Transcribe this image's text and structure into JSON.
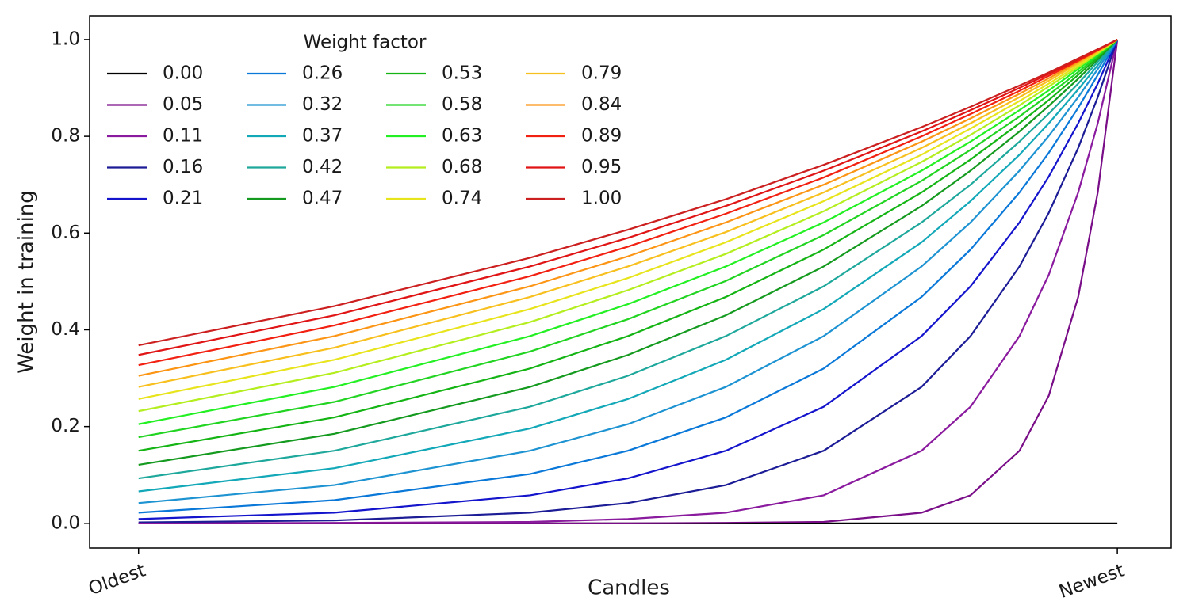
{
  "chart_data": {
    "type": "line",
    "xlabel": "Candles",
    "ylabel": "Weight in training",
    "legend_title": "Weight factor",
    "legend_position": "upper left",
    "legend_columns": 4,
    "grid": false,
    "x": [
      0,
      0.2,
      0.4,
      0.5,
      0.6,
      0.7,
      0.8,
      0.85,
      0.9,
      0.93,
      0.96,
      0.98,
      1.0
    ],
    "xlim": [
      -0.05,
      1.055
    ],
    "xticks": [
      {
        "value": 0,
        "label": "Oldest"
      },
      {
        "value": 1,
        "label": "Newest"
      }
    ],
    "ylim": [
      -0.051,
      1.049
    ],
    "yticks": [
      {
        "value": 0,
        "label": "0.0"
      },
      0.2,
      0.4,
      0.6,
      0.8,
      {
        "value": 1,
        "label": "1.0"
      }
    ],
    "series": [
      {
        "name": "0.00",
        "color": "#000000",
        "values": [
          0,
          0,
          0,
          0,
          0,
          0,
          0,
          0,
          0,
          0,
          0,
          0,
          0
        ]
      },
      {
        "name": "0.05",
        "color": "#7a0e88",
        "values": [
          0,
          0,
          0,
          0,
          0.001,
          0.003,
          0.022,
          0.058,
          0.15,
          0.264,
          0.468,
          0.684,
          1
        ]
      },
      {
        "name": "0.11",
        "color": "#8a1a9e",
        "values": [
          0,
          0.001,
          0.003,
          0.009,
          0.022,
          0.058,
          0.15,
          0.241,
          0.387,
          0.514,
          0.684,
          0.827,
          1
        ]
      },
      {
        "name": "0.16",
        "color": "#1c1c96",
        "values": [
          0.002,
          0.006,
          0.022,
          0.042,
          0.079,
          0.15,
          0.282,
          0.387,
          0.531,
          0.642,
          0.776,
          0.881,
          1
        ]
      },
      {
        "name": "0.21",
        "color": "#1414cc",
        "values": [
          0.009,
          0.022,
          0.058,
          0.093,
          0.15,
          0.241,
          0.387,
          0.49,
          0.622,
          0.717,
          0.827,
          0.909,
          1
        ]
      },
      {
        "name": "0.26",
        "color": "#0a78d8",
        "values": [
          0.022,
          0.048,
          0.102,
          0.15,
          0.219,
          0.32,
          0.468,
          0.566,
          0.684,
          0.766,
          0.859,
          0.927,
          1
        ]
      },
      {
        "name": "0.32",
        "color": "#1e93d2",
        "values": [
          0.042,
          0.079,
          0.15,
          0.205,
          0.282,
          0.387,
          0.531,
          0.622,
          0.729,
          0.801,
          0.881,
          0.939,
          1
        ]
      },
      {
        "name": "0.37",
        "color": "#12a8b8",
        "values": [
          0.066,
          0.114,
          0.196,
          0.257,
          0.338,
          0.443,
          0.581,
          0.666,
          0.762,
          0.827,
          0.897,
          0.947,
          1
        ]
      },
      {
        "name": "0.42",
        "color": "#1ea89c",
        "values": [
          0.093,
          0.15,
          0.241,
          0.305,
          0.387,
          0.49,
          0.622,
          0.7,
          0.789,
          0.847,
          0.909,
          0.954,
          1
        ]
      },
      {
        "name": "0.47",
        "color": "#149a1e",
        "values": [
          0.121,
          0.185,
          0.282,
          0.348,
          0.43,
          0.531,
          0.656,
          0.729,
          0.81,
          0.863,
          0.919,
          0.959,
          1
        ]
      },
      {
        "name": "0.53",
        "color": "#14b414",
        "values": [
          0.15,
          0.219,
          0.32,
          0.387,
          0.468,
          0.566,
          0.684,
          0.752,
          0.827,
          0.875,
          0.927,
          0.963,
          1
        ]
      },
      {
        "name": "0.58",
        "color": "#22d422",
        "values": [
          0.178,
          0.251,
          0.355,
          0.422,
          0.501,
          0.596,
          0.708,
          0.772,
          0.841,
          0.886,
          0.933,
          0.966,
          1
        ]
      },
      {
        "name": "0.63",
        "color": "#22f022",
        "values": [
          0.205,
          0.282,
          0.387,
          0.453,
          0.531,
          0.622,
          0.729,
          0.789,
          0.854,
          0.895,
          0.939,
          0.969,
          1
        ]
      },
      {
        "name": "0.68",
        "color": "#b4ee1e",
        "values": [
          0.232,
          0.311,
          0.416,
          0.482,
          0.557,
          0.645,
          0.747,
          0.803,
          0.864,
          0.903,
          0.943,
          0.971,
          1
        ]
      },
      {
        "name": "0.74",
        "color": "#e8e41c",
        "values": [
          0.257,
          0.338,
          0.443,
          0.507,
          0.581,
          0.666,
          0.762,
          0.816,
          0.873,
          0.909,
          0.947,
          0.973,
          1
        ]
      },
      {
        "name": "0.79",
        "color": "#f8c01e",
        "values": [
          0.282,
          0.363,
          0.468,
          0.531,
          0.602,
          0.684,
          0.776,
          0.827,
          0.881,
          0.915,
          0.951,
          0.975,
          1
        ]
      },
      {
        "name": "0.84",
        "color": "#fc9414",
        "values": [
          0.305,
          0.387,
          0.49,
          0.552,
          0.622,
          0.7,
          0.789,
          0.837,
          0.888,
          0.92,
          0.954,
          0.977,
          1
        ]
      },
      {
        "name": "0.89",
        "color": "#f22010",
        "values": [
          0.327,
          0.409,
          0.511,
          0.572,
          0.64,
          0.715,
          0.8,
          0.846,
          0.894,
          0.925,
          0.956,
          0.978,
          1
        ]
      },
      {
        "name": "0.95",
        "color": "#e01414",
        "values": [
          0.348,
          0.43,
          0.531,
          0.59,
          0.656,
          0.729,
          0.81,
          0.854,
          0.9,
          0.929,
          0.959,
          0.979,
          1
        ]
      },
      {
        "name": "1.00",
        "color": "#cc2020",
        "values": [
          0.368,
          0.449,
          0.549,
          0.607,
          0.67,
          0.741,
          0.819,
          0.861,
          0.905,
          0.932,
          0.961,
          0.98,
          1
        ]
      }
    ]
  }
}
